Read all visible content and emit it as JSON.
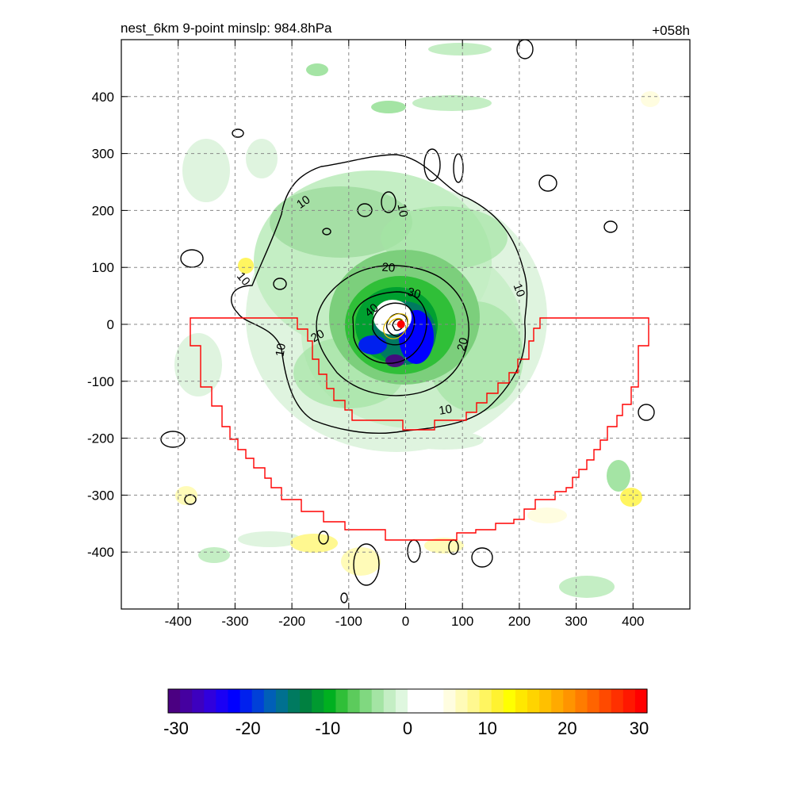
{
  "title_left": "nest_6km  9-point minslp: 984.8hPa",
  "title_right": "+058h",
  "chart_data": {
    "type": "heatmap",
    "x_ticks": [
      -400,
      -300,
      -200,
      -100,
      0,
      100,
      200,
      300,
      400
    ],
    "y_ticks": [
      400,
      300,
      200,
      100,
      0,
      -100,
      -200,
      -300,
      -400
    ],
    "xlim": [
      -500,
      500
    ],
    "ylim": [
      -500,
      500
    ],
    "grid": true,
    "grid_style": "dashed",
    "center_marker": {
      "x": -8,
      "y": 0,
      "color": "#ff0000"
    },
    "contour_labels": [
      {
        "text": "10",
        "x": -180,
        "y": 215,
        "angle": -35
      },
      {
        "text": "10",
        "x": -5,
        "y": 200,
        "angle": 80
      },
      {
        "text": "10",
        "x": 200,
        "y": 60,
        "angle": 70
      },
      {
        "text": "10",
        "x": -220,
        "y": -45,
        "angle": -80
      },
      {
        "text": "10",
        "x": 70,
        "y": -150,
        "angle": -10
      },
      {
        "text": "10",
        "x": -285,
        "y": 80,
        "angle": 50
      },
      {
        "text": "20",
        "x": -30,
        "y": 100,
        "angle": 5
      },
      {
        "text": "20",
        "x": -155,
        "y": -20,
        "angle": -30
      },
      {
        "text": "20",
        "x": 100,
        "y": -35,
        "angle": -75
      },
      {
        "text": "30",
        "x": 15,
        "y": 55,
        "angle": 15
      },
      {
        "text": "40",
        "x": -60,
        "y": 25,
        "angle": -40
      }
    ],
    "colorbar": {
      "ticks": [
        "-30",
        "-20",
        "-10",
        "0",
        "10",
        "20",
        "30"
      ],
      "range": [
        -30,
        30
      ],
      "colors": [
        "#4b0082",
        "#4500a0",
        "#3d00bf",
        "#3000dd",
        "#1a00f5",
        "#0000ff",
        "#0020ee",
        "#0040d8",
        "#005fb8",
        "#007090",
        "#007a60",
        "#008040",
        "#009a30",
        "#00b020",
        "#30bf38",
        "#5ccb5c",
        "#80d880",
        "#a4e4a4",
        "#c4eec4",
        "#dff7df",
        "#ffffff",
        "#ffffff",
        "#ffffff",
        "#fffde0",
        "#fffbb8",
        "#fff890",
        "#fff560",
        "#fff230",
        "#ffff00",
        "#ffe800",
        "#ffd400",
        "#ffc000",
        "#ffaa00",
        "#ff9400",
        "#ff7c00",
        "#ff6400",
        "#ff4a00",
        "#ff3000",
        "#ff1800",
        "#ff0000"
      ]
    }
  }
}
